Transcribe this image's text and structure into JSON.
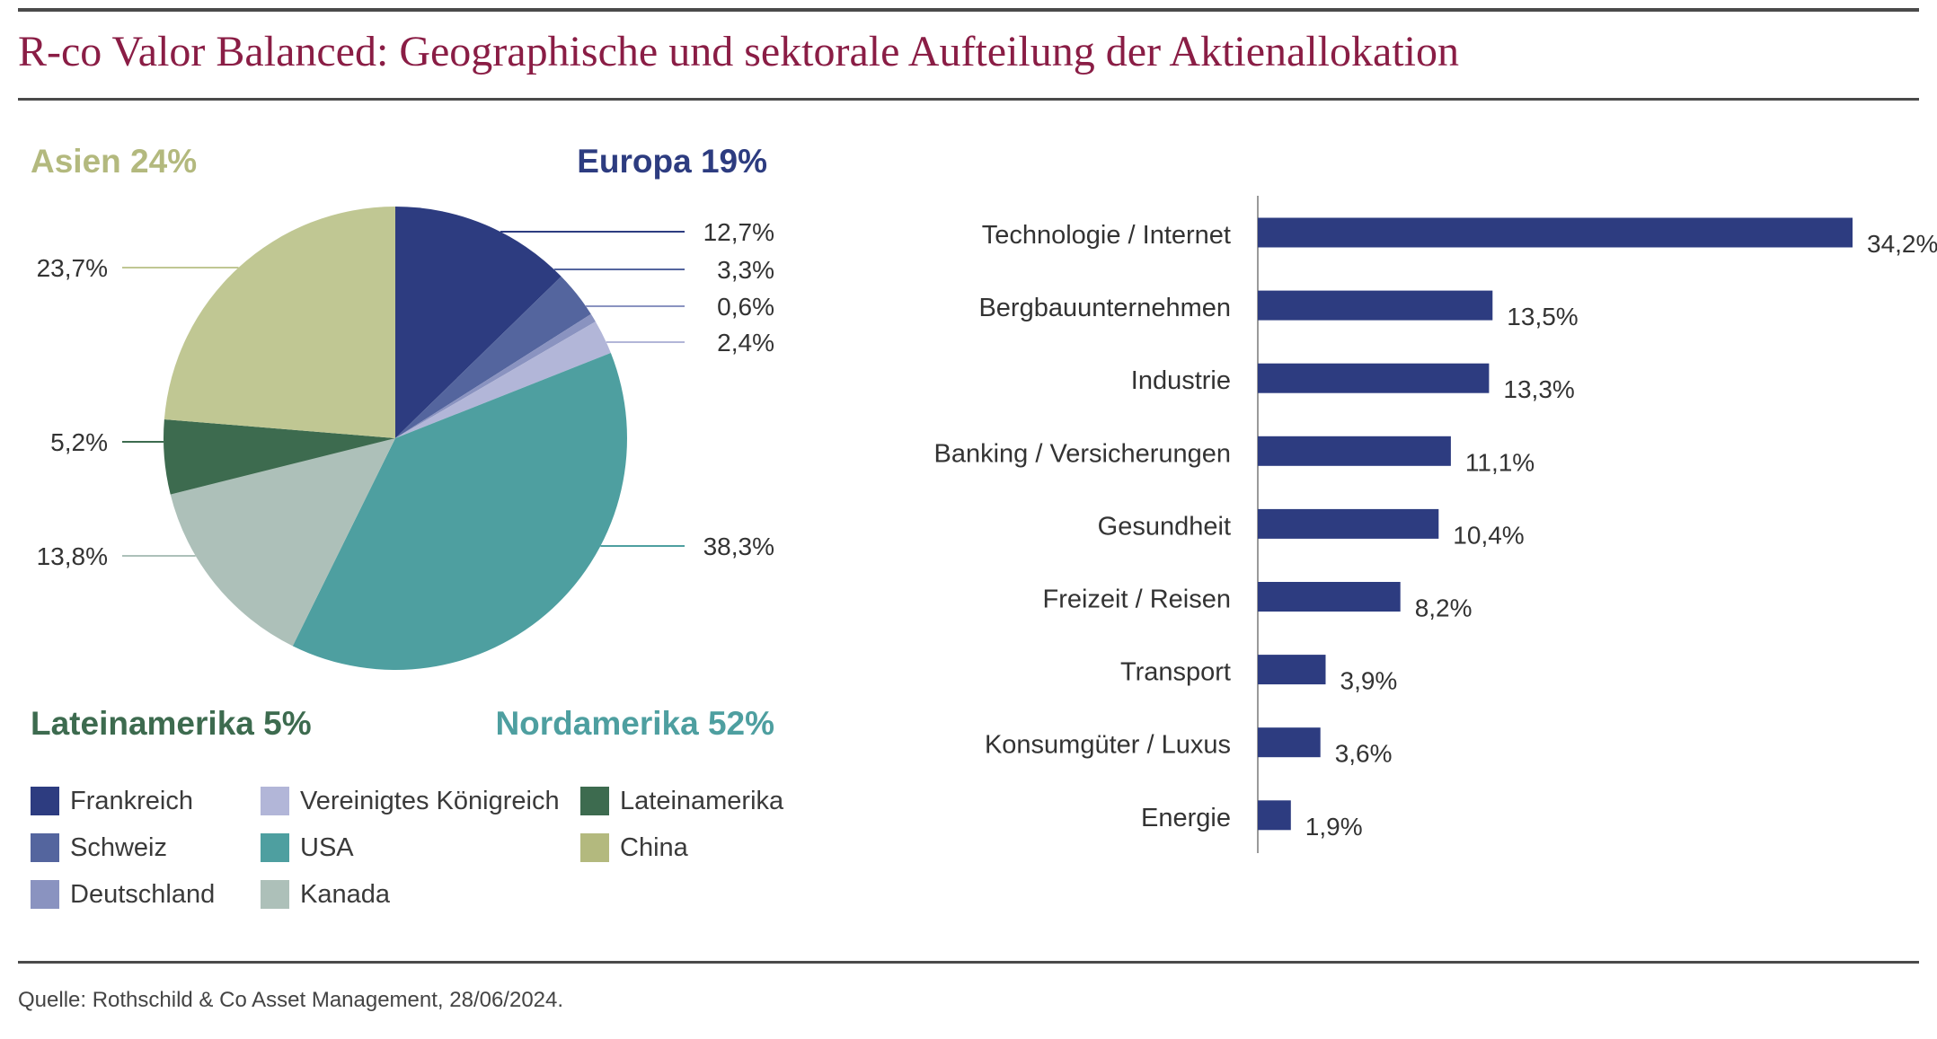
{
  "title": "R-co Valor Balanced: Geographische und sektorale Aufteilung der Aktienallokation",
  "source": "Quelle: Rothschild & Co Asset Management, 28/06/2024.",
  "chart_data": [
    {
      "type": "pie",
      "region_labels": [
        {
          "label": "Asien 24%",
          "color": "#b3b97e"
        },
        {
          "label": "Europa 19%",
          "color": "#2d3c80"
        },
        {
          "label": "Lateinamerika 5%",
          "color": "#3d6b4f"
        },
        {
          "label": "Nordamerika 52%",
          "color": "#4e9fa0"
        }
      ],
      "slices": [
        {
          "name": "Frankreich",
          "value": 12.7,
          "label": "12,7%",
          "color": "#2d3c80"
        },
        {
          "name": "Schweiz",
          "value": 3.3,
          "label": "3,3%",
          "color": "#54659e"
        },
        {
          "name": "Deutschland",
          "value": 0.6,
          "label": "0,6%",
          "color": "#8a93c0"
        },
        {
          "name": "Vereinigtes Königreich",
          "value": 2.4,
          "label": "2,4%",
          "color": "#b2b6d8"
        },
        {
          "name": "USA",
          "value": 38.3,
          "label": "38,3%",
          "color": "#4e9fa0"
        },
        {
          "name": "Kanada",
          "value": 13.8,
          "label": "13,8%",
          "color": "#adc0b9"
        },
        {
          "name": "Lateinamerika",
          "value": 5.2,
          "label": "5,2%",
          "color": "#3d6b4f"
        },
        {
          "name": "China",
          "value": 23.7,
          "label": "23,7%",
          "color": "#c0c793"
        }
      ],
      "legend": [
        {
          "label": "Frankreich",
          "color": "#2d3c80"
        },
        {
          "label": "Vereinigtes Königreich",
          "color": "#b2b6d8"
        },
        {
          "label": "Lateinamerika",
          "color": "#3d6b4f"
        },
        {
          "label": "Schweiz",
          "color": "#54659e"
        },
        {
          "label": "USA",
          "color": "#4e9fa0"
        },
        {
          "label": "China",
          "color": "#b3b97e"
        },
        {
          "label": "Deutschland",
          "color": "#8a93c0"
        },
        {
          "label": "Kanada",
          "color": "#adc0b9"
        }
      ]
    },
    {
      "type": "bar",
      "orientation": "horizontal",
      "color": "#2d3c80",
      "categories": [
        "Technologie / Internet",
        "Bergbauunternehmen",
        "Industrie",
        "Banking / Versicherungen",
        "Gesundheit",
        "Freizeit / Reisen",
        "Transport",
        "Konsumgüter / Luxus",
        "Energie"
      ],
      "values": [
        34.2,
        13.5,
        13.3,
        11.1,
        10.4,
        8.2,
        3.9,
        3.6,
        1.9
      ],
      "value_labels": [
        "34,2%",
        "13,5%",
        "13,3%",
        "11,1%",
        "10,4%",
        "8,2%",
        "3,9%",
        "3,6%",
        "1,9%"
      ],
      "xlim": [
        0,
        34.2
      ]
    }
  ]
}
